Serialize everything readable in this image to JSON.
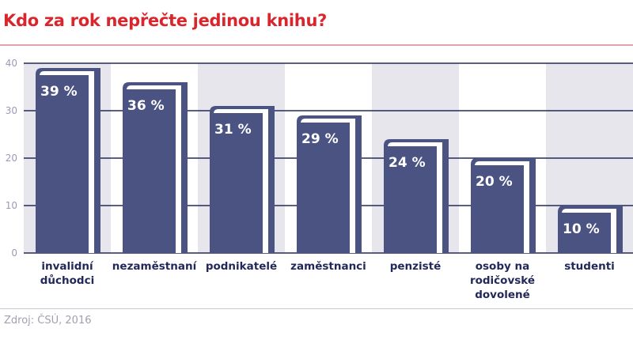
{
  "title": "Kdo za rok nepřečte jedinou knihu?",
  "source": "Zdroj: ČSÚ, 2016",
  "colors": {
    "title": "#d9262c",
    "bar": "#4b5382",
    "grid": "#23285a",
    "band": "#e6e6ec",
    "axis_label": "#9a9ab8"
  },
  "chart_data": {
    "type": "bar",
    "title": "Kdo za rok nepřečte jedinou knihu?",
    "categories": [
      "invalidní důchodci",
      "nezaměstnaní",
      "podnikatelé",
      "zaměstnanci",
      "penzisté",
      "osoby na rodičovské dovolené",
      "studenti"
    ],
    "values": [
      39,
      36,
      31,
      29,
      24,
      20,
      10
    ],
    "data_labels": [
      "39 %",
      "36 %",
      "31 %",
      "29 %",
      "24 %",
      "20 %",
      "10 %"
    ],
    "yticks": [
      0,
      10,
      20,
      30,
      40
    ],
    "ylim": [
      0,
      40
    ],
    "grid": true,
    "unit": "%"
  }
}
